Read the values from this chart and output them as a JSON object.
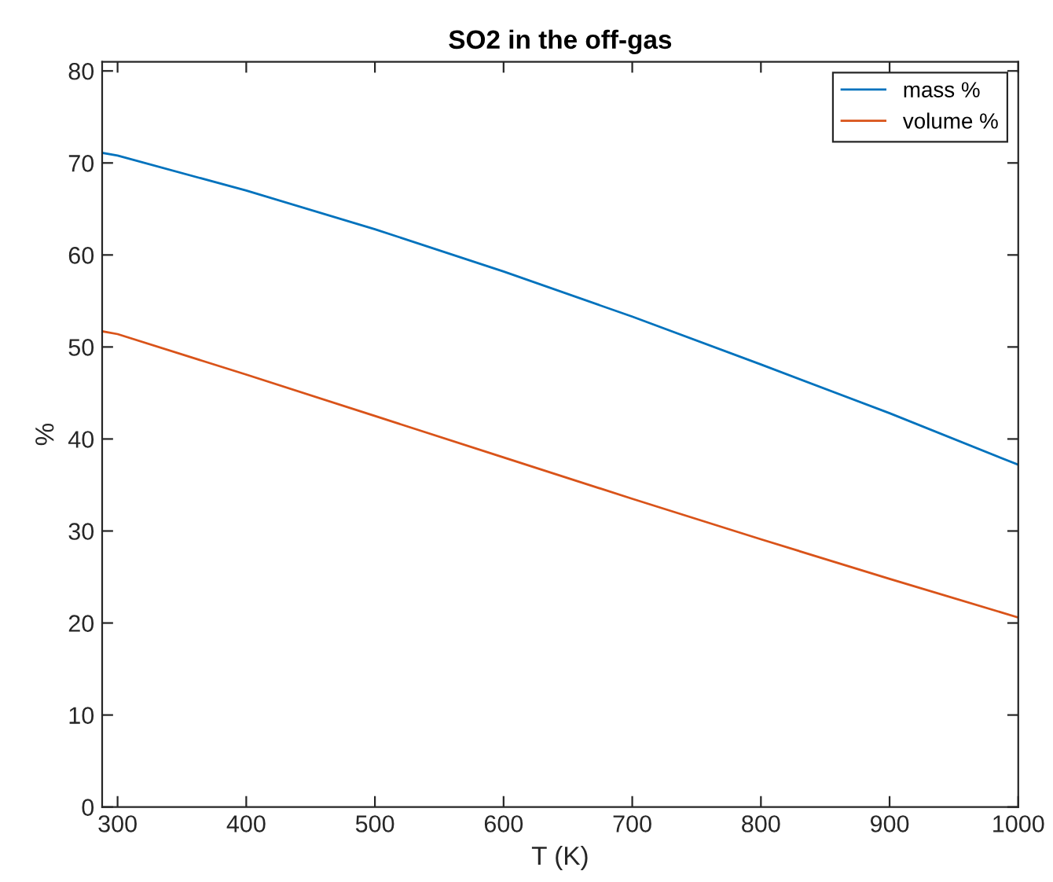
{
  "chart_data": {
    "type": "line",
    "title": "SO2 in the off-gas",
    "xlabel": "T (K)",
    "ylabel": "%",
    "x": [
      288,
      300,
      400,
      500,
      600,
      700,
      800,
      900,
      1000
    ],
    "series": [
      {
        "name": "mass %",
        "color": "#0072bd",
        "values": [
          71.1,
          70.8,
          67.0,
          62.8,
          58.2,
          53.3,
          48.1,
          42.8,
          37.2
        ]
      },
      {
        "name": "volume %",
        "color": "#d95319",
        "values": [
          51.7,
          51.4,
          47.0,
          42.5,
          38.0,
          33.5,
          29.1,
          24.8,
          20.6
        ]
      }
    ],
    "xlim": [
      288,
      1000
    ],
    "xticks": [
      300,
      400,
      500,
      600,
      700,
      800,
      900,
      1000
    ],
    "ylim": [
      0,
      81
    ],
    "yticks": [
      0,
      10,
      20,
      30,
      40,
      50,
      60,
      70,
      80
    ],
    "grid": false,
    "legend": "top right",
    "marker": "none",
    "line_style": "solid"
  }
}
